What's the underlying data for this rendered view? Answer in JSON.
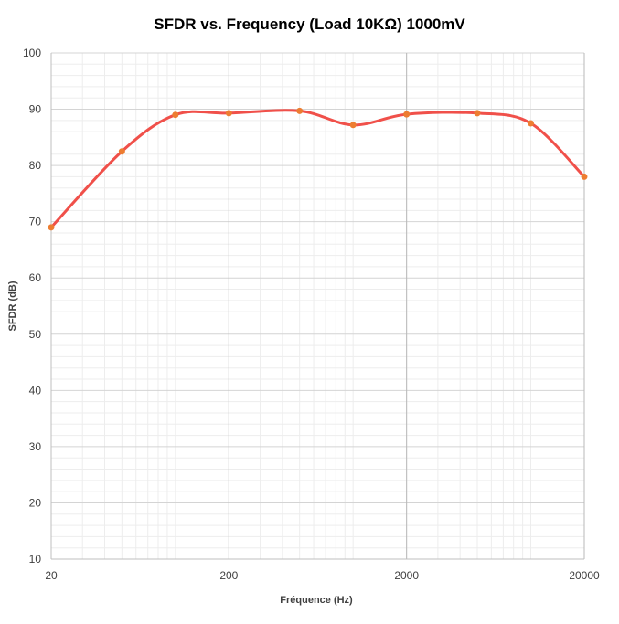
{
  "chart_data": {
    "type": "line",
    "title": "SFDR vs. Frequency (Load  10KΩ) 1000mV",
    "xlabel": "Fréquence (Hz)",
    "ylabel": "SFDR (dB)",
    "x_scale": "log",
    "xlim": [
      20,
      20000
    ],
    "ylim": [
      10,
      100
    ],
    "x_ticks": [
      "20",
      "200",
      "2000",
      "20000"
    ],
    "y_ticks": [
      "10",
      "20",
      "30",
      "40",
      "50",
      "60",
      "70",
      "80",
      "90",
      "100"
    ],
    "grid": true,
    "legend": "none",
    "series": [
      {
        "color": "#f0504a",
        "marker_color": "#ed7d31",
        "x": [
          20,
          50,
          100,
          200,
          500,
          1000,
          2000,
          5000,
          10000,
          20000
        ],
        "y": [
          69,
          82.5,
          89,
          89.3,
          89.7,
          87.2,
          89.1,
          89.3,
          87.5,
          78
        ]
      }
    ]
  }
}
